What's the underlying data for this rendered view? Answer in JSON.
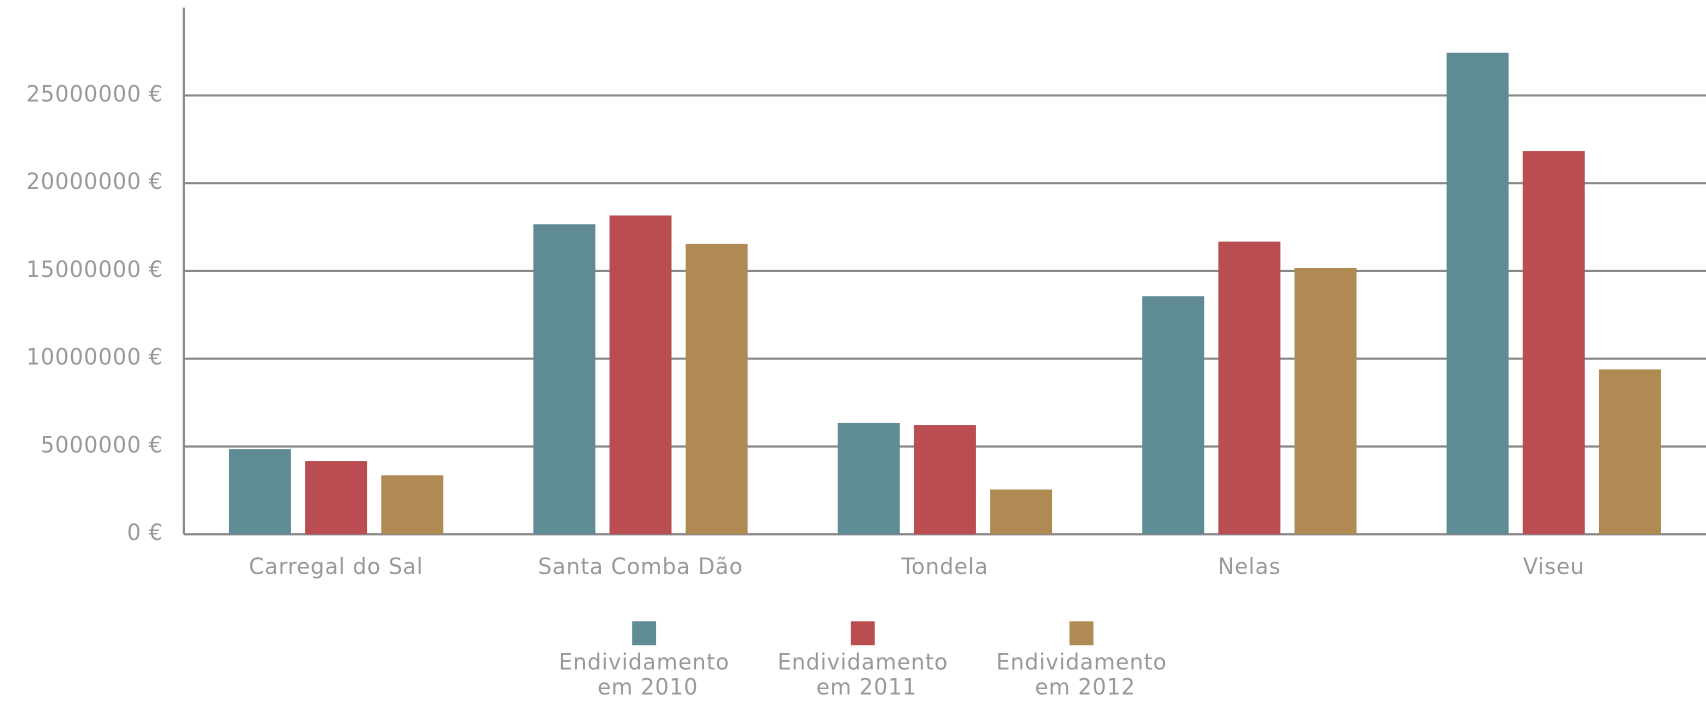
{
  "chart_data": {
    "type": "bar",
    "categories": [
      "Carregal do Sal",
      "Santa Comba Dão",
      "Tondela",
      "Nelas",
      "Viseu"
    ],
    "series": [
      {
        "name": "Endividamento em 2010",
        "color": "#5f8b95",
        "values": [
          4850000,
          17660000,
          6340000,
          13560000,
          27430000
        ]
      },
      {
        "name": "Endividamento em 2011",
        "color": "#ba4d51",
        "values": [
          4170000,
          18160000,
          6220000,
          16670000,
          21830000
        ]
      },
      {
        "name": "Endividamento em 2012",
        "color": "#af8a53",
        "values": [
          3360000,
          16540000,
          2550000,
          15170000,
          9390000
        ]
      }
    ],
    "ylim": [
      0,
      30000000
    ],
    "yticks": [
      {
        "value": 0,
        "label": "0 €"
      },
      {
        "value": 5000000,
        "label": "5000000 €"
      },
      {
        "value": 10000000,
        "label": "10000000 €"
      },
      {
        "value": 15000000,
        "label": "15000000 €"
      },
      {
        "value": 20000000,
        "label": "20000000 €"
      },
      {
        "value": 25000000,
        "label": "25000000 €"
      }
    ],
    "grid": true,
    "legend": "bottom"
  }
}
